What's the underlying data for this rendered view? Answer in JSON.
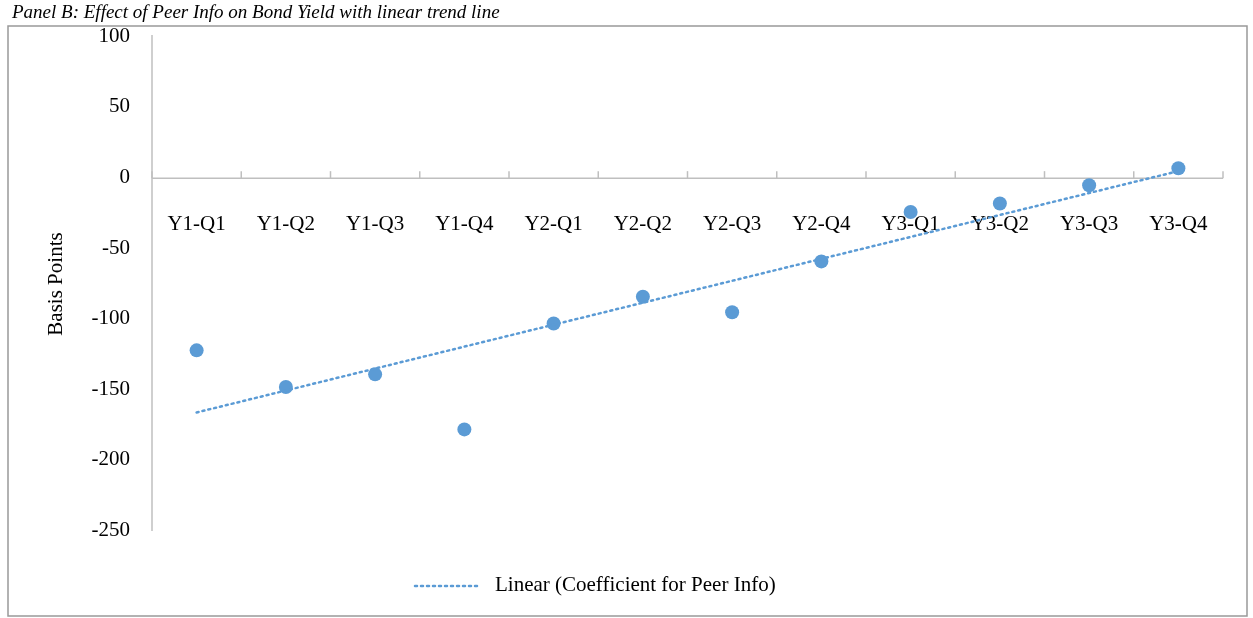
{
  "chart_data": {
    "type": "scatter",
    "title": "Panel B: Effect of Peer Info on Bond Yield with linear trend line",
    "ylabel": "Basis Points",
    "categories": [
      "Y1-Q1",
      "Y1-Q2",
      "Y1-Q3",
      "Y1-Q4",
      "Y2-Q1",
      "Y2-Q2",
      "Y2-Q3",
      "Y2-Q4",
      "Y3-Q1",
      "Y3-Q2",
      "Y3-Q3",
      "Y3-Q4"
    ],
    "series": [
      {
        "type": "scatter",
        "color": "#5b9bd5",
        "marker": "circle",
        "values": [
          -122,
          -148,
          -139,
          -178,
          -103,
          -84,
          -95,
          -59,
          -24,
          -18,
          -5,
          7
        ]
      },
      {
        "type": "line",
        "name": "Linear (Coefficient for Peer Info)",
        "color": "#5b9bd5",
        "line_style": "dotted",
        "marker": "none",
        "x": [
          "Y1-Q1",
          "Y3-Q4"
        ],
        "values": [
          -166,
          5
        ]
      }
    ],
    "ylim": [
      -250,
      100
    ],
    "yticks": [
      100,
      50,
      0,
      -50,
      -100,
      -150,
      -200,
      -250
    ],
    "grid": false,
    "legend": "bottom"
  }
}
